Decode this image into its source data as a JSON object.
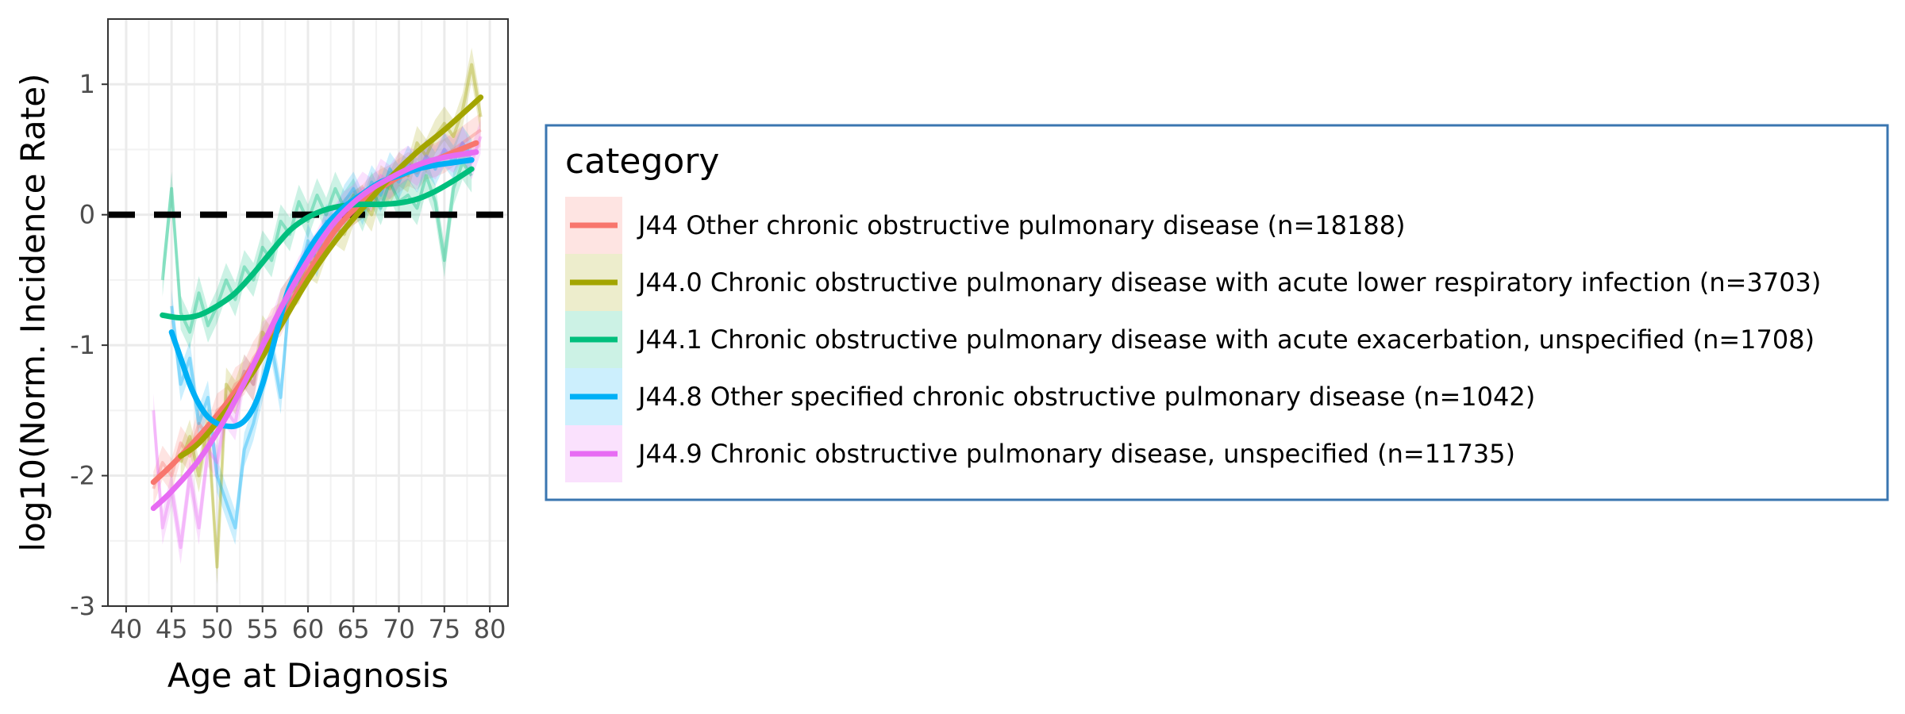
{
  "chart_data": {
    "type": "line",
    "xlabel": "Age at Diagnosis",
    "ylabel": "log10(Norm. Incidence Rate)",
    "xlim": [
      38,
      82
    ],
    "ylim": [
      -3,
      1.5
    ],
    "x_ticks": [
      "40",
      "45",
      "50",
      "55",
      "60",
      "65",
      "70",
      "75",
      "80"
    ],
    "y_ticks": [
      "-3",
      "-2",
      "-1",
      "0",
      "1"
    ],
    "reference_line": {
      "y": 0,
      "style": "dashed",
      "color": "#000000"
    },
    "grid": true,
    "legend_title": "category",
    "legend_position": "right",
    "series": [
      {
        "name": "J44 Other chronic obstructive pulmonary disease (n=18188)",
        "color": "#F8766D",
        "smooth": {
          "x": [
            43,
            45,
            48,
            51,
            54,
            57,
            60,
            63,
            66,
            69,
            72,
            75,
            78.5
          ],
          "y": [
            -2.05,
            -1.92,
            -1.7,
            -1.45,
            -1.15,
            -0.82,
            -0.45,
            -0.12,
            0.1,
            0.25,
            0.36,
            0.45,
            0.55
          ]
        },
        "raw": {
          "x": [
            43,
            44,
            45,
            46,
            47,
            48,
            49,
            50,
            51,
            52,
            53,
            54,
            55,
            56,
            57,
            58,
            59,
            60,
            61,
            62,
            63,
            64,
            65,
            66,
            67,
            68,
            69,
            70,
            71,
            72,
            73,
            74,
            75,
            76,
            77,
            78,
            79
          ],
          "y": [
            -2.1,
            -1.9,
            -2.0,
            -1.75,
            -1.85,
            -1.6,
            -1.7,
            -1.5,
            -1.45,
            -1.3,
            -1.25,
            -1.1,
            -1.0,
            -0.85,
            -0.8,
            -0.65,
            -0.5,
            -0.4,
            -0.3,
            -0.2,
            -0.1,
            0.0,
            0.05,
            0.1,
            0.18,
            0.22,
            0.25,
            0.3,
            0.35,
            0.32,
            0.4,
            0.42,
            0.45,
            0.5,
            0.55,
            0.6,
            0.65
          ]
        }
      },
      {
        "name": "J44.0 Chronic obstructive pulmonary disease with acute lower respiratory infection (n=3703)",
        "color": "#A3A500",
        "smooth": {
          "x": [
            46,
            48,
            51,
            54,
            57,
            60,
            63,
            66,
            69,
            72,
            75,
            79
          ],
          "y": [
            -1.85,
            -1.75,
            -1.5,
            -1.2,
            -0.85,
            -0.5,
            -0.2,
            0.05,
            0.28,
            0.48,
            0.65,
            0.9
          ]
        },
        "raw": {
          "x": [
            46,
            47,
            48,
            49,
            50,
            51,
            52,
            53,
            54,
            55,
            56,
            57,
            58,
            59,
            60,
            61,
            62,
            63,
            64,
            65,
            66,
            67,
            68,
            69,
            70,
            71,
            72,
            73,
            74,
            75,
            76,
            77,
            78,
            79
          ],
          "y": [
            -1.9,
            -1.7,
            -2.0,
            -1.6,
            -2.7,
            -1.3,
            -1.4,
            -1.2,
            -1.3,
            -0.9,
            -1.0,
            -0.7,
            -0.6,
            -0.55,
            -0.35,
            -0.4,
            -0.2,
            -0.1,
            -0.15,
            0.05,
            0.1,
            0.0,
            0.25,
            0.2,
            0.35,
            0.3,
            0.55,
            0.45,
            0.6,
            0.7,
            0.6,
            0.8,
            1.15,
            0.75
          ]
        }
      },
      {
        "name": "J44.1 Chronic obstructive pulmonary disease with acute exacerbation, unspecified (n=1708)",
        "color": "#00BF7D",
        "smooth": {
          "x": [
            44,
            46,
            48,
            50,
            52,
            54,
            56,
            58,
            60,
            62,
            64,
            66,
            68,
            70,
            72,
            74,
            76,
            78
          ],
          "y": [
            -0.77,
            -0.79,
            -0.77,
            -0.7,
            -0.6,
            -0.45,
            -0.28,
            -0.12,
            -0.02,
            0.04,
            0.07,
            0.08,
            0.08,
            0.09,
            0.12,
            0.18,
            0.26,
            0.35
          ]
        },
        "raw": {
          "x": [
            44,
            45,
            46,
            47,
            48,
            49,
            50,
            51,
            52,
            53,
            54,
            55,
            56,
            57,
            58,
            59,
            60,
            61,
            62,
            63,
            64,
            65,
            66,
            67,
            68,
            69,
            70,
            71,
            72,
            73,
            74,
            75,
            76,
            77,
            78
          ],
          "y": [
            -0.5,
            0.2,
            -0.75,
            -0.9,
            -0.6,
            -0.85,
            -0.7,
            -0.5,
            -0.65,
            -0.4,
            -0.5,
            -0.25,
            -0.35,
            -0.05,
            -0.15,
            0.1,
            -0.05,
            0.15,
            0.0,
            0.2,
            0.05,
            0.15,
            0.0,
            0.2,
            0.05,
            0.25,
            0.1,
            0.15,
            0.05,
            0.3,
            0.1,
            -0.35,
            0.2,
            0.4,
            0.3
          ]
        }
      },
      {
        "name": "J44.8 Other specified chronic obstructive pulmonary disease (n=1042)",
        "color": "#00B0F6",
        "smooth": {
          "x": [
            45,
            46,
            47,
            48,
            49,
            50,
            51,
            52,
            53,
            54,
            55,
            56,
            57,
            58,
            60,
            62,
            64,
            66,
            68,
            70,
            72,
            74,
            76,
            78
          ],
          "y": [
            -0.9,
            -1.1,
            -1.3,
            -1.45,
            -1.55,
            -1.6,
            -1.62,
            -1.62,
            -1.58,
            -1.48,
            -1.3,
            -1.05,
            -0.78,
            -0.55,
            -0.28,
            -0.08,
            0.06,
            0.16,
            0.25,
            0.3,
            0.35,
            0.38,
            0.4,
            0.42
          ]
        },
        "raw": {
          "x": [
            45,
            46,
            47,
            48,
            49,
            50,
            51,
            52,
            53,
            54,
            55,
            56,
            57,
            58,
            59,
            60,
            61,
            62,
            63,
            64,
            65,
            66,
            67,
            68,
            69,
            70,
            71,
            72,
            73,
            74,
            75,
            76,
            77,
            78
          ],
          "y": [
            -0.7,
            -1.3,
            -1.1,
            -1.6,
            -1.4,
            -2.0,
            -2.2,
            -2.4,
            -1.8,
            -1.6,
            -1.3,
            -1.0,
            -1.4,
            -0.6,
            -0.5,
            -0.2,
            -0.35,
            -0.05,
            -0.1,
            0.1,
            0.2,
            0.05,
            0.25,
            0.15,
            0.35,
            0.25,
            0.4,
            0.3,
            0.45,
            0.35,
            0.5,
            0.4,
            0.55,
            0.45
          ]
        }
      },
      {
        "name": "J44.9 Chronic obstructive pulmonary disease, unspecified (n=11735)",
        "color": "#E76BF3",
        "smooth": {
          "x": [
            43,
            45,
            48,
            51,
            54,
            57,
            60,
            63,
            66,
            69,
            72,
            75,
            78.5
          ],
          "y": [
            -2.25,
            -2.12,
            -1.88,
            -1.55,
            -1.15,
            -0.72,
            -0.35,
            -0.05,
            0.15,
            0.28,
            0.38,
            0.44,
            0.48
          ]
        },
        "raw": {
          "x": [
            43,
            44,
            45,
            46,
            47,
            48,
            49,
            50,
            51,
            52,
            53,
            54,
            55,
            56,
            57,
            58,
            59,
            60,
            61,
            62,
            63,
            64,
            65,
            66,
            67,
            68,
            69,
            70,
            71,
            72,
            73,
            74,
            75,
            76,
            77,
            78,
            79
          ],
          "y": [
            -1.5,
            -2.4,
            -2.1,
            -2.55,
            -2.0,
            -2.4,
            -1.8,
            -1.9,
            -1.5,
            -1.6,
            -1.2,
            -1.3,
            -0.95,
            -0.9,
            -0.7,
            -0.6,
            -0.45,
            -0.35,
            -0.25,
            -0.1,
            -0.05,
            0.05,
            0.1,
            0.2,
            0.15,
            0.3,
            0.25,
            0.35,
            0.4,
            0.35,
            0.45,
            0.4,
            0.5,
            0.45,
            0.55,
            0.4,
            0.6
          ]
        }
      }
    ]
  }
}
